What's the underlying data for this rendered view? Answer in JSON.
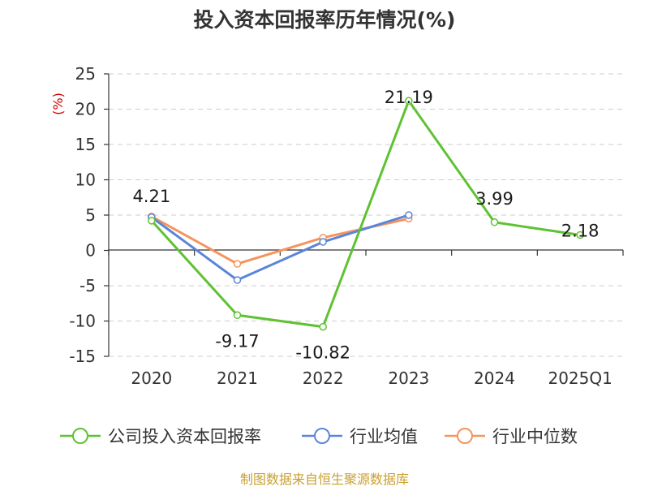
{
  "chart_data": {
    "type": "line",
    "title": "投入资本回报率历年情况(%)",
    "ylabel": "(%)",
    "ylim": [
      -15,
      25
    ],
    "yticks": [
      25,
      20,
      15,
      10,
      5,
      0,
      -5,
      -10,
      -15
    ],
    "categories": [
      "2020",
      "2021",
      "2022",
      "2023",
      "2024",
      "2025Q1"
    ],
    "grid": true,
    "legend_position": "bottom",
    "series": [
      {
        "name": "公司投入资本回报率",
        "color": "#5ec232",
        "values": [
          4.21,
          -9.17,
          -10.82,
          21.19,
          3.99,
          2.18
        ],
        "labels": [
          "4.21",
          "-9.17",
          "-10.82",
          "21.19",
          "3.99",
          "2.18"
        ]
      },
      {
        "name": "行业均值",
        "color": "#5b85d9",
        "values": [
          4.7,
          -4.2,
          1.2,
          5.0,
          null,
          null
        ]
      },
      {
        "name": "行业中位数",
        "color": "#f5945c",
        "values": [
          4.8,
          -1.9,
          1.8,
          4.5,
          null,
          null
        ]
      }
    ]
  },
  "footer": {
    "source": "制图数据来自恒生聚源数据库"
  }
}
